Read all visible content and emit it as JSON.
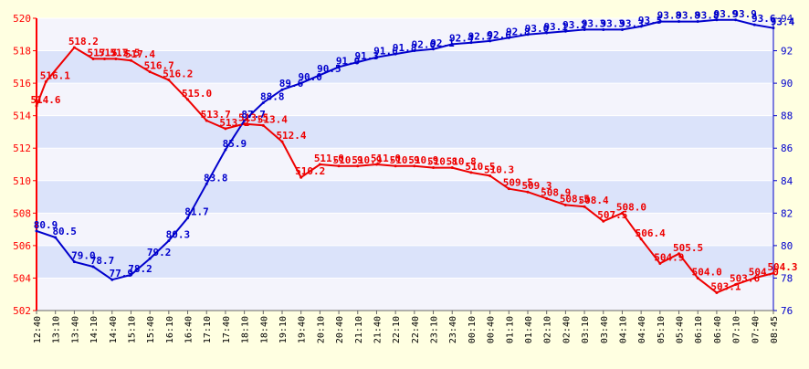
{
  "chart_data": {
    "type": "line",
    "title": "",
    "xlabel": "",
    "ylabel": "",
    "grid": true,
    "x_tick_labels": [
      "12:40",
      "13:10",
      "13:40",
      "14:10",
      "14:40",
      "15:10",
      "15:40",
      "16:10",
      "16:40",
      "17:10",
      "17:40",
      "18:10",
      "18:40",
      "19:10",
      "19:40",
      "20:10",
      "20:40",
      "21:10",
      "21:40",
      "22:10",
      "22:40",
      "23:10",
      "23:40",
      "00:10",
      "00:40",
      "01:10",
      "01:40",
      "02:10",
      "02:40",
      "03:10",
      "03:40",
      "04:10",
      "04:40",
      "05:10",
      "05:40",
      "06:10",
      "06:40",
      "07:10",
      "07:40",
      "08:45"
    ],
    "y_left": {
      "ticks": [
        502,
        504,
        506,
        508,
        510,
        512,
        514,
        516,
        518,
        520
      ],
      "range": [
        502,
        520
      ],
      "color": "#ff0000"
    },
    "y_right": {
      "ticks": [
        76,
        78,
        80,
        82,
        84,
        86,
        88,
        90,
        92,
        94
      ],
      "range": [
        76,
        94
      ],
      "color": "#0000cc"
    },
    "series": [
      {
        "axis": "left",
        "color": "#ee0000",
        "points": [
          {
            "x": 0,
            "y": 514.6,
            "label": "514.6"
          },
          {
            "x": 0.5,
            "y": 516.1,
            "label": "516.1"
          },
          {
            "x": 2,
            "y": 518.2,
            "label": "518.2"
          },
          {
            "x": 3,
            "y": 517.5,
            "label": "517.5"
          },
          {
            "x": 3.6,
            "y": 517.5,
            "label": "517.5"
          },
          {
            "x": 4.2,
            "y": 517.5,
            "label": "517.5"
          },
          {
            "x": 5,
            "y": 517.4,
            "label": "517.4"
          },
          {
            "x": 6,
            "y": 516.7,
            "label": "516.7"
          },
          {
            "x": 7,
            "y": 516.2,
            "label": "516.2"
          },
          {
            "x": 8,
            "y": 515.0,
            "label": "515.0"
          },
          {
            "x": 9,
            "y": 513.7,
            "label": "513.7"
          },
          {
            "x": 10,
            "y": 513.2,
            "label": "513.2"
          },
          {
            "x": 11,
            "y": 513.5,
            "label": "513.5"
          },
          {
            "x": 12,
            "y": 513.4,
            "label": "513.4"
          },
          {
            "x": 13,
            "y": 512.4,
            "label": "512.4"
          },
          {
            "x": 14,
            "y": 510.2,
            "label": "510.2"
          },
          {
            "x": 15,
            "y": 511.0,
            "label": "511.0"
          },
          {
            "x": 16,
            "y": 510.9,
            "label": "510.9"
          },
          {
            "x": 17,
            "y": 510.9,
            "label": "510.9"
          },
          {
            "x": 18,
            "y": 511.0,
            "label": "511.0"
          },
          {
            "x": 19,
            "y": 510.9,
            "label": "510.9"
          },
          {
            "x": 20,
            "y": 510.9,
            "label": "510.9"
          },
          {
            "x": 21,
            "y": 510.8,
            "label": "510.8"
          },
          {
            "x": 22,
            "y": 510.8,
            "label": "510.8"
          },
          {
            "x": 23,
            "y": 510.5,
            "label": "510.5"
          },
          {
            "x": 24,
            "y": 510.3,
            "label": "510.3"
          },
          {
            "x": 25,
            "y": 509.5,
            "label": "509.5"
          },
          {
            "x": 26,
            "y": 509.3,
            "label": "509.3"
          },
          {
            "x": 27,
            "y": 508.9,
            "label": "508.9"
          },
          {
            "x": 28,
            "y": 508.5,
            "label": "508.5"
          },
          {
            "x": 29,
            "y": 508.4,
            "label": "508.4"
          },
          {
            "x": 30,
            "y": 507.5,
            "label": "507.5"
          },
          {
            "x": 31,
            "y": 508.0,
            "label": "508.0"
          },
          {
            "x": 32,
            "y": 506.4,
            "label": "506.4"
          },
          {
            "x": 33,
            "y": 504.9,
            "label": "504.9"
          },
          {
            "x": 34,
            "y": 505.5,
            "label": "505.5"
          },
          {
            "x": 35,
            "y": 504.0,
            "label": "504.0"
          },
          {
            "x": 36,
            "y": 503.1,
            "label": "503.1"
          },
          {
            "x": 37,
            "y": 503.6,
            "label": "503.6"
          },
          {
            "x": 38,
            "y": 504.0,
            "label": "504.0"
          },
          {
            "x": 39,
            "y": 504.3,
            "label": "504.3"
          }
        ]
      },
      {
        "axis": "right",
        "color": "#0000cc",
        "points": [
          {
            "x": 0,
            "y": 80.9,
            "label": "80.9"
          },
          {
            "x": 1,
            "y": 80.5,
            "label": "80.5"
          },
          {
            "x": 2,
            "y": 79.0,
            "label": "79.0"
          },
          {
            "x": 3,
            "y": 78.7,
            "label": "78.7"
          },
          {
            "x": 4,
            "y": 77.9,
            "label": "77.9"
          },
          {
            "x": 5,
            "y": 78.2,
            "label": "78.2"
          },
          {
            "x": 6,
            "y": 79.2,
            "label": "79.2"
          },
          {
            "x": 7,
            "y": 80.3,
            "label": "80.3"
          },
          {
            "x": 8,
            "y": 81.7,
            "label": "81.7"
          },
          {
            "x": 9,
            "y": 83.8,
            "label": "83.8"
          },
          {
            "x": 10,
            "y": 85.9,
            "label": "85.9"
          },
          {
            "x": 11,
            "y": 87.7,
            "label": "87.7"
          },
          {
            "x": 12,
            "y": 88.8,
            "label": "88.8"
          },
          {
            "x": 13,
            "y": 89.6,
            "label": "89.6"
          },
          {
            "x": 14,
            "y": 90.0,
            "label": "90.0"
          },
          {
            "x": 15,
            "y": 90.5,
            "label": "90.5"
          },
          {
            "x": 16,
            "y": 91.0,
            "label": "91.0"
          },
          {
            "x": 17,
            "y": 91.3,
            "label": "91.3"
          },
          {
            "x": 18,
            "y": 91.6,
            "label": "91.6"
          },
          {
            "x": 19,
            "y": 91.8,
            "label": "91.8"
          },
          {
            "x": 20,
            "y": 92.0,
            "label": "92.0"
          },
          {
            "x": 21,
            "y": 92.1,
            "label": "92.1"
          },
          {
            "x": 22,
            "y": 92.4,
            "label": "92.4"
          },
          {
            "x": 23,
            "y": 92.5,
            "label": "92.5"
          },
          {
            "x": 24,
            "y": 92.6,
            "label": "92.6"
          },
          {
            "x": 25,
            "y": 92.8,
            "label": "92.8"
          },
          {
            "x": 26,
            "y": 93.0,
            "label": "93.0"
          },
          {
            "x": 27,
            "y": 93.1,
            "label": "93.1"
          },
          {
            "x": 28,
            "y": 93.2,
            "label": "93.2"
          },
          {
            "x": 29,
            "y": 93.3,
            "label": "93.3"
          },
          {
            "x": 30,
            "y": 93.3,
            "label": "93.3"
          },
          {
            "x": 31,
            "y": 93.3,
            "label": "93.3"
          },
          {
            "x": 32,
            "y": 93.5,
            "label": "93.5"
          },
          {
            "x": 33,
            "y": 93.8,
            "label": "93.8"
          },
          {
            "x": 34,
            "y": 93.8,
            "label": "93.8"
          },
          {
            "x": 35,
            "y": 93.8,
            "label": "93.8"
          },
          {
            "x": 36,
            "y": 93.9,
            "label": "93.9"
          },
          {
            "x": 37,
            "y": 93.9,
            "label": "93.9"
          },
          {
            "x": 38,
            "y": 93.6,
            "label": "93.6"
          },
          {
            "x": 39,
            "y": 93.4,
            "label": "93.4"
          }
        ]
      }
    ]
  },
  "colors": {
    "background": "#ffffe1",
    "band_light": "#f4f4fc",
    "band_dark": "#dbe3fa",
    "grid": "#ffffff"
  }
}
